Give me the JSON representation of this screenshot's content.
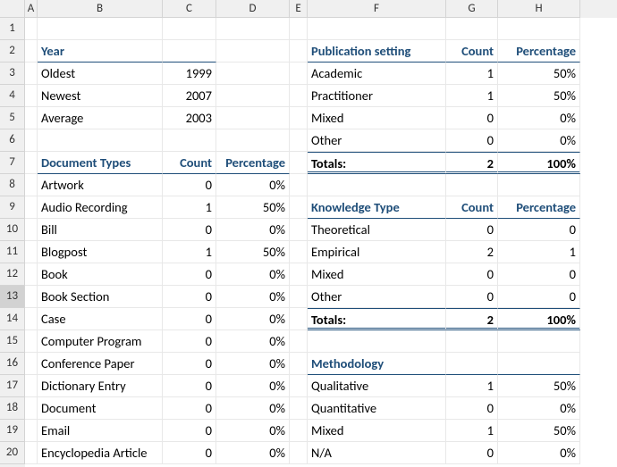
{
  "columns": [
    "A",
    "B",
    "C",
    "D",
    "E",
    "F",
    "G",
    "H"
  ],
  "colWidths": {
    "corner": 28,
    "A": 14,
    "B": 140,
    "C": 60,
    "D": 82,
    "E": 20,
    "F": 155,
    "G": 58,
    "H": 92
  },
  "selectedRow": 13,
  "year": {
    "title": "Year",
    "rows": [
      {
        "label": "Oldest",
        "value": "1999"
      },
      {
        "label": "Newest",
        "value": "2007"
      },
      {
        "label": "Average",
        "value": "2003"
      }
    ]
  },
  "docTypes": {
    "title": "Document Types",
    "countHeader": "Count",
    "pctHeader": "Percentage",
    "rows": [
      {
        "label": "Artwork",
        "count": "0",
        "pct": "0%"
      },
      {
        "label": "Audio Recording",
        "count": "1",
        "pct": "50%"
      },
      {
        "label": "Bill",
        "count": "0",
        "pct": "0%"
      },
      {
        "label": "Blogpost",
        "count": "1",
        "pct": "50%"
      },
      {
        "label": "Book",
        "count": "0",
        "pct": "0%"
      },
      {
        "label": "Book Section",
        "count": "0",
        "pct": "0%"
      },
      {
        "label": "Case",
        "count": "0",
        "pct": "0%"
      },
      {
        "label": "Computer Program",
        "count": "0",
        "pct": "0%"
      },
      {
        "label": "Conference Paper",
        "count": "0",
        "pct": "0%"
      },
      {
        "label": "Dictionary Entry",
        "count": "0",
        "pct": "0%"
      },
      {
        "label": "Document",
        "count": "0",
        "pct": "0%"
      },
      {
        "label": "Email",
        "count": "0",
        "pct": "0%"
      },
      {
        "label": "Encyclopedia Article",
        "count": "0",
        "pct": "0%"
      }
    ]
  },
  "pubSetting": {
    "title": "Publication setting",
    "countHeader": "Count",
    "pctHeader": "Percentage",
    "rows": [
      {
        "label": "Academic",
        "count": "1",
        "pct": "50%"
      },
      {
        "label": "Practitioner",
        "count": "1",
        "pct": "50%"
      },
      {
        "label": "Mixed",
        "count": "0",
        "pct": "0%"
      },
      {
        "label": "Other",
        "count": "0",
        "pct": "0%"
      }
    ],
    "totalsLabel": "Totals:",
    "totalsCount": "2",
    "totalsPct": "100%"
  },
  "knowType": {
    "title": "Knowledge Type",
    "countHeader": "Count",
    "pctHeader": "Percentage",
    "rows": [
      {
        "label": "Theoretical",
        "count": "0",
        "pct": "0"
      },
      {
        "label": "Empirical",
        "count": "2",
        "pct": "1"
      },
      {
        "label": "Mixed",
        "count": "0",
        "pct": "0"
      },
      {
        "label": "Other",
        "count": "0",
        "pct": "0"
      }
    ],
    "totalsLabel": "Totals:",
    "totalsCount": "2",
    "totalsPct": "100%"
  },
  "methodology": {
    "title": "Methodology",
    "rows": [
      {
        "label": "Qualitative",
        "count": "1",
        "pct": "50%"
      },
      {
        "label": "Quantitative",
        "count": "0",
        "pct": "0%"
      },
      {
        "label": "Mixed",
        "count": "1",
        "pct": "50%"
      },
      {
        "label": "N/A",
        "count": "0",
        "pct": "0%"
      }
    ]
  }
}
